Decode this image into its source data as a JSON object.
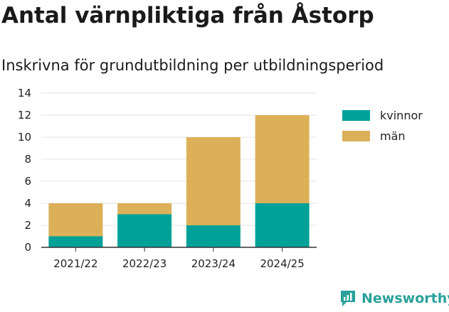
{
  "title": "Antal värnpliktiga från Åstorp",
  "subtitle": "Inskrivna för grundutbildning per utbildningsperiod",
  "brand": "Newsworthy",
  "chart_data": {
    "type": "bar",
    "stacked": true,
    "categories": [
      "2021/22",
      "2022/23",
      "2023/24",
      "2024/25"
    ],
    "series": [
      {
        "name": "kvinnor",
        "color": "#00a199",
        "values": [
          1,
          3,
          2,
          4
        ]
      },
      {
        "name": "män",
        "color": "#dcb059",
        "values": [
          3,
          1,
          8,
          8
        ]
      }
    ],
    "ylim": [
      0,
      14
    ],
    "yticks": [
      "0",
      "2",
      "4",
      "6",
      "8",
      "10",
      "12",
      "14"
    ],
    "grid": true,
    "legend_position": "right"
  }
}
